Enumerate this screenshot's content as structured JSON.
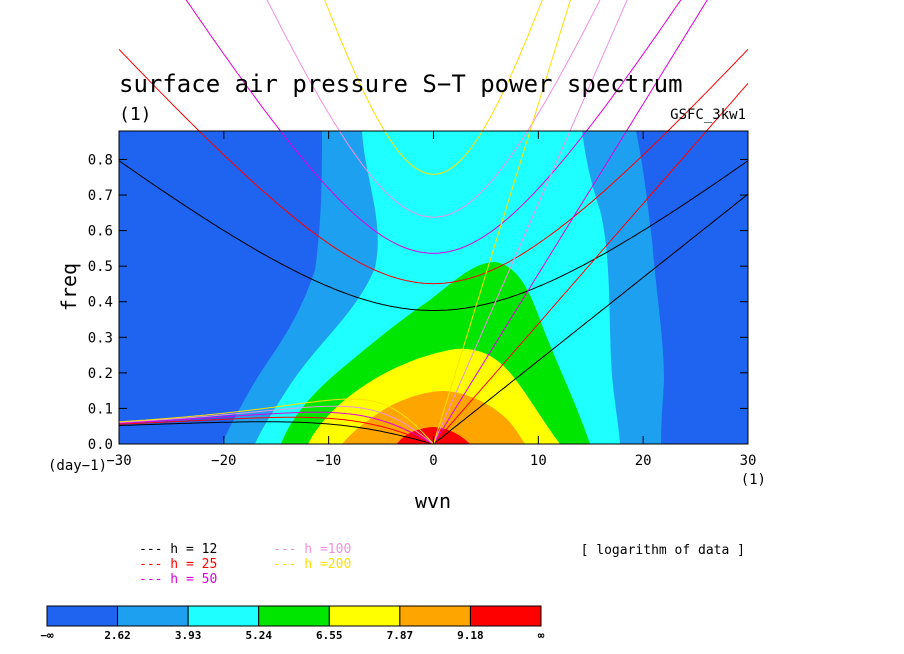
{
  "chart_data": {
    "type": "heatmap",
    "title": "surface air pressure S−T power spectrum",
    "title_unit": "(1)",
    "dataset_label": "GSFC_3kw1",
    "xlabel": "wvn",
    "ylabel": "freq",
    "x_unit": "(1)",
    "y_unit": "(day−1)",
    "xlim": [
      -30,
      30
    ],
    "ylim": [
      0,
      0.88
    ],
    "x_ticks": [
      -30,
      -20,
      -10,
      0,
      10,
      20,
      30
    ],
    "x_tick_labels": [
      "−30",
      "−20",
      "−10",
      "0",
      "10",
      "20",
      "30"
    ],
    "y_ticks": [
      0,
      0.1,
      0.2,
      0.3,
      0.4,
      0.5,
      0.6,
      0.7,
      0.8
    ],
    "y_tick_labels": [
      "0.0",
      "0.1",
      "0.2",
      "0.3",
      "0.4",
      "0.5",
      "0.6",
      "0.7",
      "0.8"
    ],
    "data_note": "[ logarithm of data ]",
    "colorbar": {
      "labels": [
        "−∞",
        "2.62",
        "3.93",
        "5.24",
        "6.55",
        "7.87",
        "9.18",
        "∞"
      ],
      "colors": [
        "#1e64f0",
        "#1ea0f0",
        "#1effff",
        "#00e600",
        "#ffff00",
        "#ffa500",
        "#ff0000"
      ]
    },
    "dispersion_curves": [
      {
        "name": "h = 12",
        "h": 12,
        "color": "#000000"
      },
      {
        "name": "h = 25",
        "h": 25,
        "color": "#ff0000"
      },
      {
        "name": "h = 50",
        "h": 50,
        "color": "#e000e0"
      },
      {
        "name": "h =100",
        "h": 100,
        "color": "#f090e0"
      },
      {
        "name": "h =200",
        "h": 200,
        "color": "#ffe000"
      }
    ]
  }
}
